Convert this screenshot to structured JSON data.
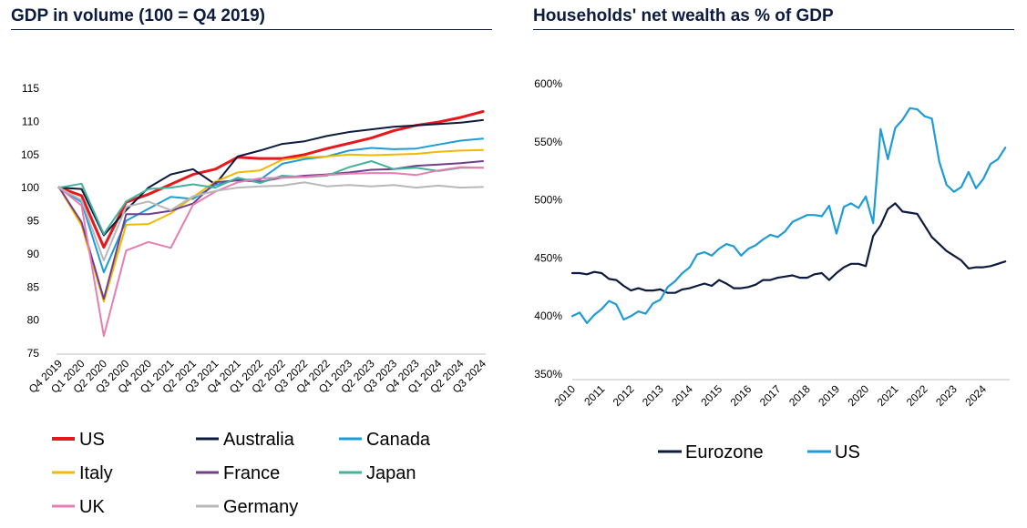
{
  "chart_data": [
    {
      "type": "line",
      "title": "GDP in volume (100 = Q4 2019)",
      "xlabel": "",
      "ylabel": "",
      "ylim": [
        75,
        115
      ],
      "yticks": [
        75,
        80,
        85,
        90,
        95,
        100,
        105,
        110,
        115
      ],
      "categories": [
        "Q4 2019",
        "Q1 2020",
        "Q2 2020",
        "Q3 2020",
        "Q4 2020",
        "Q1 2021",
        "Q2 2021",
        "Q3 2021",
        "Q4 2021",
        "Q1 2022",
        "Q2 2022",
        "Q3 2022",
        "Q4 2022",
        "Q1 2023",
        "Q2 2023",
        "Q3 2023",
        "Q4 2023",
        "Q1 2024",
        "Q2 2024",
        "Q3 2024"
      ],
      "legend_position": "bottom",
      "series": [
        {
          "name": "US",
          "color": "#e8171b",
          "values": [
            100,
            98.8,
            91,
            97.8,
            99.0,
            100.5,
            102.0,
            102.8,
            104.6,
            104.4,
            104.4,
            105.0,
            105.9,
            106.7,
            107.5,
            108.6,
            109.4,
            109.9,
            110.6,
            111.5
          ]
        },
        {
          "name": "Australia",
          "color": "#0d1b3e",
          "values": [
            100,
            99.8,
            92.8,
            96.6,
            100.0,
            102.0,
            102.8,
            100.5,
            104.7,
            105.6,
            106.6,
            107.0,
            107.8,
            108.4,
            108.8,
            109.2,
            109.4,
            109.6,
            109.8,
            110.2
          ]
        },
        {
          "name": "Canada",
          "color": "#1f9cd6",
          "values": [
            100,
            97.8,
            87.2,
            95.0,
            96.8,
            98.6,
            98.3,
            100.4,
            101.2,
            101.2,
            103.6,
            104.3,
            104.7,
            105.6,
            106.0,
            105.8,
            105.9,
            106.5,
            107.1,
            107.4
          ]
        },
        {
          "name": "Italy",
          "color": "#f4b800",
          "values": [
            100,
            94.3,
            82.8,
            94.4,
            94.5,
            96.1,
            98.6,
            100.9,
            102.3,
            102.6,
            104.2,
            104.6,
            104.7,
            105.0,
            104.9,
            105.0,
            105.1,
            105.4,
            105.6,
            105.7
          ]
        },
        {
          "name": "France",
          "color": "#6f3f8e",
          "values": [
            100,
            94.8,
            83.2,
            96.0,
            96.0,
            96.5,
            97.6,
            100.8,
            101.1,
            100.9,
            101.5,
            101.8,
            102.0,
            102.3,
            102.7,
            102.8,
            103.3,
            103.5,
            103.7,
            104.0
          ]
        },
        {
          "name": "Japan",
          "color": "#45b29d",
          "values": [
            100,
            100.6,
            93.0,
            97.9,
            99.8,
            100.0,
            100.5,
            100.0,
            101.5,
            100.7,
            101.8,
            101.6,
            101.8,
            103.1,
            104.0,
            102.8,
            103.0,
            102.5,
            103.0,
            103.0
          ]
        },
        {
          "name": "UK",
          "color": "#e57eb2",
          "values": [
            100,
            97.3,
            77.6,
            90.5,
            91.8,
            90.9,
            97.4,
            99.4,
            100.8,
            101.4,
            101.5,
            101.6,
            101.9,
            102.1,
            102.2,
            102.2,
            101.9,
            102.6,
            103.1,
            103.0
          ]
        },
        {
          "name": "Germany",
          "color": "#b8b8b8",
          "values": [
            100,
            98.1,
            89.0,
            97.1,
            97.9,
            96.6,
            98.7,
            99.5,
            100.0,
            100.2,
            100.3,
            100.8,
            100.2,
            100.4,
            100.2,
            100.4,
            100.0,
            100.3,
            100.0,
            100.1
          ]
        }
      ]
    },
    {
      "type": "line",
      "title": "Households' net wealth as % of GDP",
      "xlabel": "",
      "ylabel": "",
      "ylim": [
        350,
        600
      ],
      "yticks": [
        350,
        400,
        450,
        500,
        550,
        600
      ],
      "ytick_labels": [
        "350%",
        "400%",
        "450%",
        "500%",
        "550%",
        "600%"
      ],
      "xlim": [
        2010,
        2024.9
      ],
      "xticks": [
        2010,
        2011,
        2012,
        2013,
        2014,
        2015,
        2016,
        2017,
        2018,
        2019,
        2020,
        2021,
        2022,
        2023,
        2024
      ],
      "xtick_labels": [
        "2010",
        "2011",
        "2012",
        "2013",
        "2014",
        "2015",
        "2016",
        "2017",
        "2018",
        "2019",
        "2020",
        "2021",
        "2022",
        "2023",
        "2024"
      ],
      "legend_position": "bottom",
      "series": [
        {
          "name": "Eurozone",
          "color": "#0d1b3e",
          "x": [
            2010,
            2010.25,
            2010.5,
            2010.75,
            2011,
            2011.25,
            2011.5,
            2011.75,
            2012,
            2012.25,
            2012.5,
            2012.75,
            2013,
            2013.25,
            2013.5,
            2013.75,
            2014,
            2014.25,
            2014.5,
            2014.75,
            2015,
            2015.25,
            2015.5,
            2015.75,
            2016,
            2016.25,
            2016.5,
            2016.75,
            2017,
            2017.25,
            2017.5,
            2017.75,
            2018,
            2018.25,
            2018.5,
            2018.75,
            2019,
            2019.25,
            2019.5,
            2019.75,
            2020,
            2020.25,
            2020.5,
            2020.75,
            2021,
            2021.25,
            2021.5,
            2021.75,
            2022,
            2022.25,
            2022.5,
            2022.75,
            2023,
            2023.25,
            2023.5,
            2023.75,
            2024,
            2024.25,
            2024.5,
            2024.75
          ],
          "values": [
            437,
            437,
            436,
            438,
            437,
            432,
            431,
            426,
            422,
            424,
            422,
            422,
            423,
            420,
            420,
            423,
            424,
            426,
            428,
            426,
            431,
            428,
            424,
            424,
            425,
            427,
            431,
            431,
            433,
            434,
            435,
            433,
            433,
            436,
            437,
            431,
            437,
            442,
            445,
            445,
            443,
            469,
            478,
            492,
            497,
            490,
            489,
            488,
            478,
            468,
            462,
            456,
            452,
            448,
            441,
            442,
            442,
            443,
            445,
            447
          ]
        },
        {
          "name": "US",
          "color": "#1f9cd6",
          "x": [
            2010,
            2010.25,
            2010.5,
            2010.75,
            2011,
            2011.25,
            2011.5,
            2011.75,
            2012,
            2012.25,
            2012.5,
            2012.75,
            2013,
            2013.25,
            2013.5,
            2013.75,
            2014,
            2014.25,
            2014.5,
            2014.75,
            2015,
            2015.25,
            2015.5,
            2015.75,
            2016,
            2016.25,
            2016.5,
            2016.75,
            2017,
            2017.25,
            2017.5,
            2017.75,
            2018,
            2018.25,
            2018.5,
            2018.75,
            2019,
            2019.25,
            2019.5,
            2019.75,
            2020,
            2020.25,
            2020.5,
            2020.75,
            2021,
            2021.25,
            2021.5,
            2021.75,
            2022,
            2022.25,
            2022.5,
            2022.75,
            2023,
            2023.25,
            2023.5,
            2023.75,
            2024,
            2024.25,
            2024.5,
            2024.75
          ],
          "values": [
            400,
            403,
            394,
            401,
            406,
            413,
            410,
            397,
            400,
            404,
            402,
            411,
            414,
            425,
            430,
            437,
            442,
            453,
            455,
            452,
            458,
            462,
            460,
            452,
            458,
            461,
            466,
            470,
            468,
            473,
            481,
            484,
            487,
            487,
            486,
            495,
            471,
            494,
            497,
            493,
            503,
            480,
            561,
            535,
            562,
            569,
            579,
            578,
            572,
            570,
            533,
            513,
            507,
            511,
            524,
            510,
            518,
            531,
            535,
            545
          ]
        }
      ]
    }
  ]
}
